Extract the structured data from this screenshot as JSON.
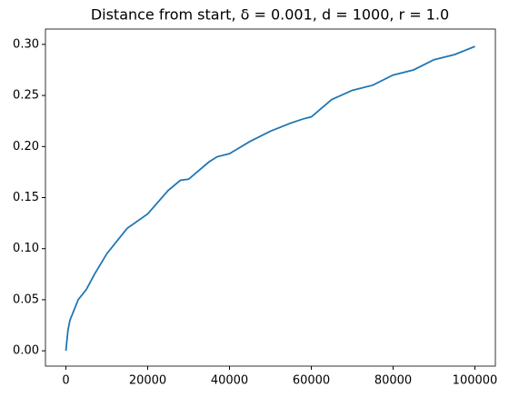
{
  "chart_data": {
    "type": "line",
    "title": "Distance from start, δ = 0.001, d = 1000, r = 1.0",
    "x": [
      0,
      500,
      1000,
      2000,
      3000,
      5000,
      7000,
      10000,
      15000,
      20000,
      25000,
      28000,
      30000,
      35000,
      37000,
      40000,
      45000,
      50000,
      55000,
      58000,
      60000,
      65000,
      70000,
      75000,
      80000,
      85000,
      90000,
      95000,
      100000
    ],
    "series": [
      {
        "color": "#1f77b4",
        "values": [
          0,
          0.02,
          0.03,
          0.04,
          0.05,
          0.06,
          0.075,
          0.095,
          0.12,
          0.134,
          0.157,
          0.167,
          0.168,
          0.185,
          0.19,
          0.193,
          0.205,
          0.215,
          0.223,
          0.227,
          0.229,
          0.246,
          0.255,
          0.26,
          0.27,
          0.275,
          0.285,
          0.29,
          0.298
        ]
      }
    ],
    "xlim": [
      -5000,
      105000
    ],
    "ylim": [
      -0.015,
      0.315
    ],
    "xticks": [
      0,
      20000,
      40000,
      60000,
      80000,
      100000
    ],
    "yticks": [
      {
        "value": 0,
        "label": "0.00"
      },
      {
        "value": 0.05,
        "label": "0.05"
      },
      {
        "value": 0.1,
        "label": "0.10"
      },
      {
        "value": 0.15,
        "label": "0.15"
      },
      {
        "value": 0.2,
        "label": "0.20"
      },
      {
        "value": 0.25,
        "label": "0.25"
      },
      {
        "value": 0.3,
        "label": "0.30"
      }
    ]
  }
}
